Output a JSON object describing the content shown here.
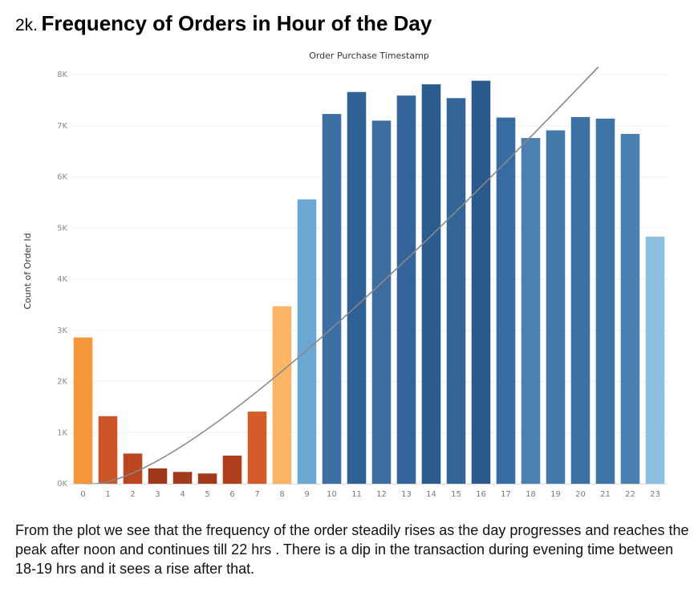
{
  "section_number": "2k.",
  "section_title": "Frequency of Orders in Hour of the Day",
  "chart_data": {
    "type": "bar",
    "title": "Order Purchase Timestamp",
    "xlabel": "",
    "ylabel": "Count of Order Id",
    "ylim": [
      0,
      8000
    ],
    "yticks": [
      0,
      1000,
      2000,
      3000,
      4000,
      5000,
      6000,
      7000,
      8000
    ],
    "ytick_labels": [
      "0K",
      "1K",
      "2K",
      "3K",
      "4K",
      "5K",
      "6K",
      "7K",
      "8K"
    ],
    "categories": [
      "0",
      "1",
      "2",
      "3",
      "4",
      "5",
      "6",
      "7",
      "8",
      "9",
      "10",
      "11",
      "12",
      "13",
      "14",
      "15",
      "16",
      "17",
      "18",
      "19",
      "20",
      "21",
      "22",
      "23"
    ],
    "values": [
      2860,
      1320,
      590,
      300,
      230,
      200,
      550,
      1410,
      3470,
      5560,
      7230,
      7660,
      7100,
      7590,
      7810,
      7540,
      7880,
      7160,
      6760,
      6910,
      7170,
      7140,
      6840,
      4830
    ],
    "colors": [
      "#f5963c",
      "#cd5427",
      "#b9461e",
      "#a0391b",
      "#a43a1c",
      "#a33a1b",
      "#b0401d",
      "#d45b2a",
      "#fbb564",
      "#6ca6d2",
      "#3c6fa3",
      "#2f6194",
      "#3b6da0",
      "#33659a",
      "#2b5c8f",
      "#336598",
      "#2a5a8d",
      "#386b9f",
      "#4c80b3",
      "#4479ab",
      "#3d72a5",
      "#3e73a6",
      "#4880b2",
      "#8bbfdf"
    ],
    "trend_line": {
      "x": [
        0,
        19
      ],
      "y": [
        0,
        8150
      ],
      "color": "#888888",
      "curve": "quadratic"
    },
    "grid": true
  },
  "description": "From the plot we see that the frequency of the order steadily rises as the day progresses and reaches the peak after noon and continues till 22 hrs . There is a dip in the transaction during evening time between 18-19 hrs and it sees a rise after that."
}
